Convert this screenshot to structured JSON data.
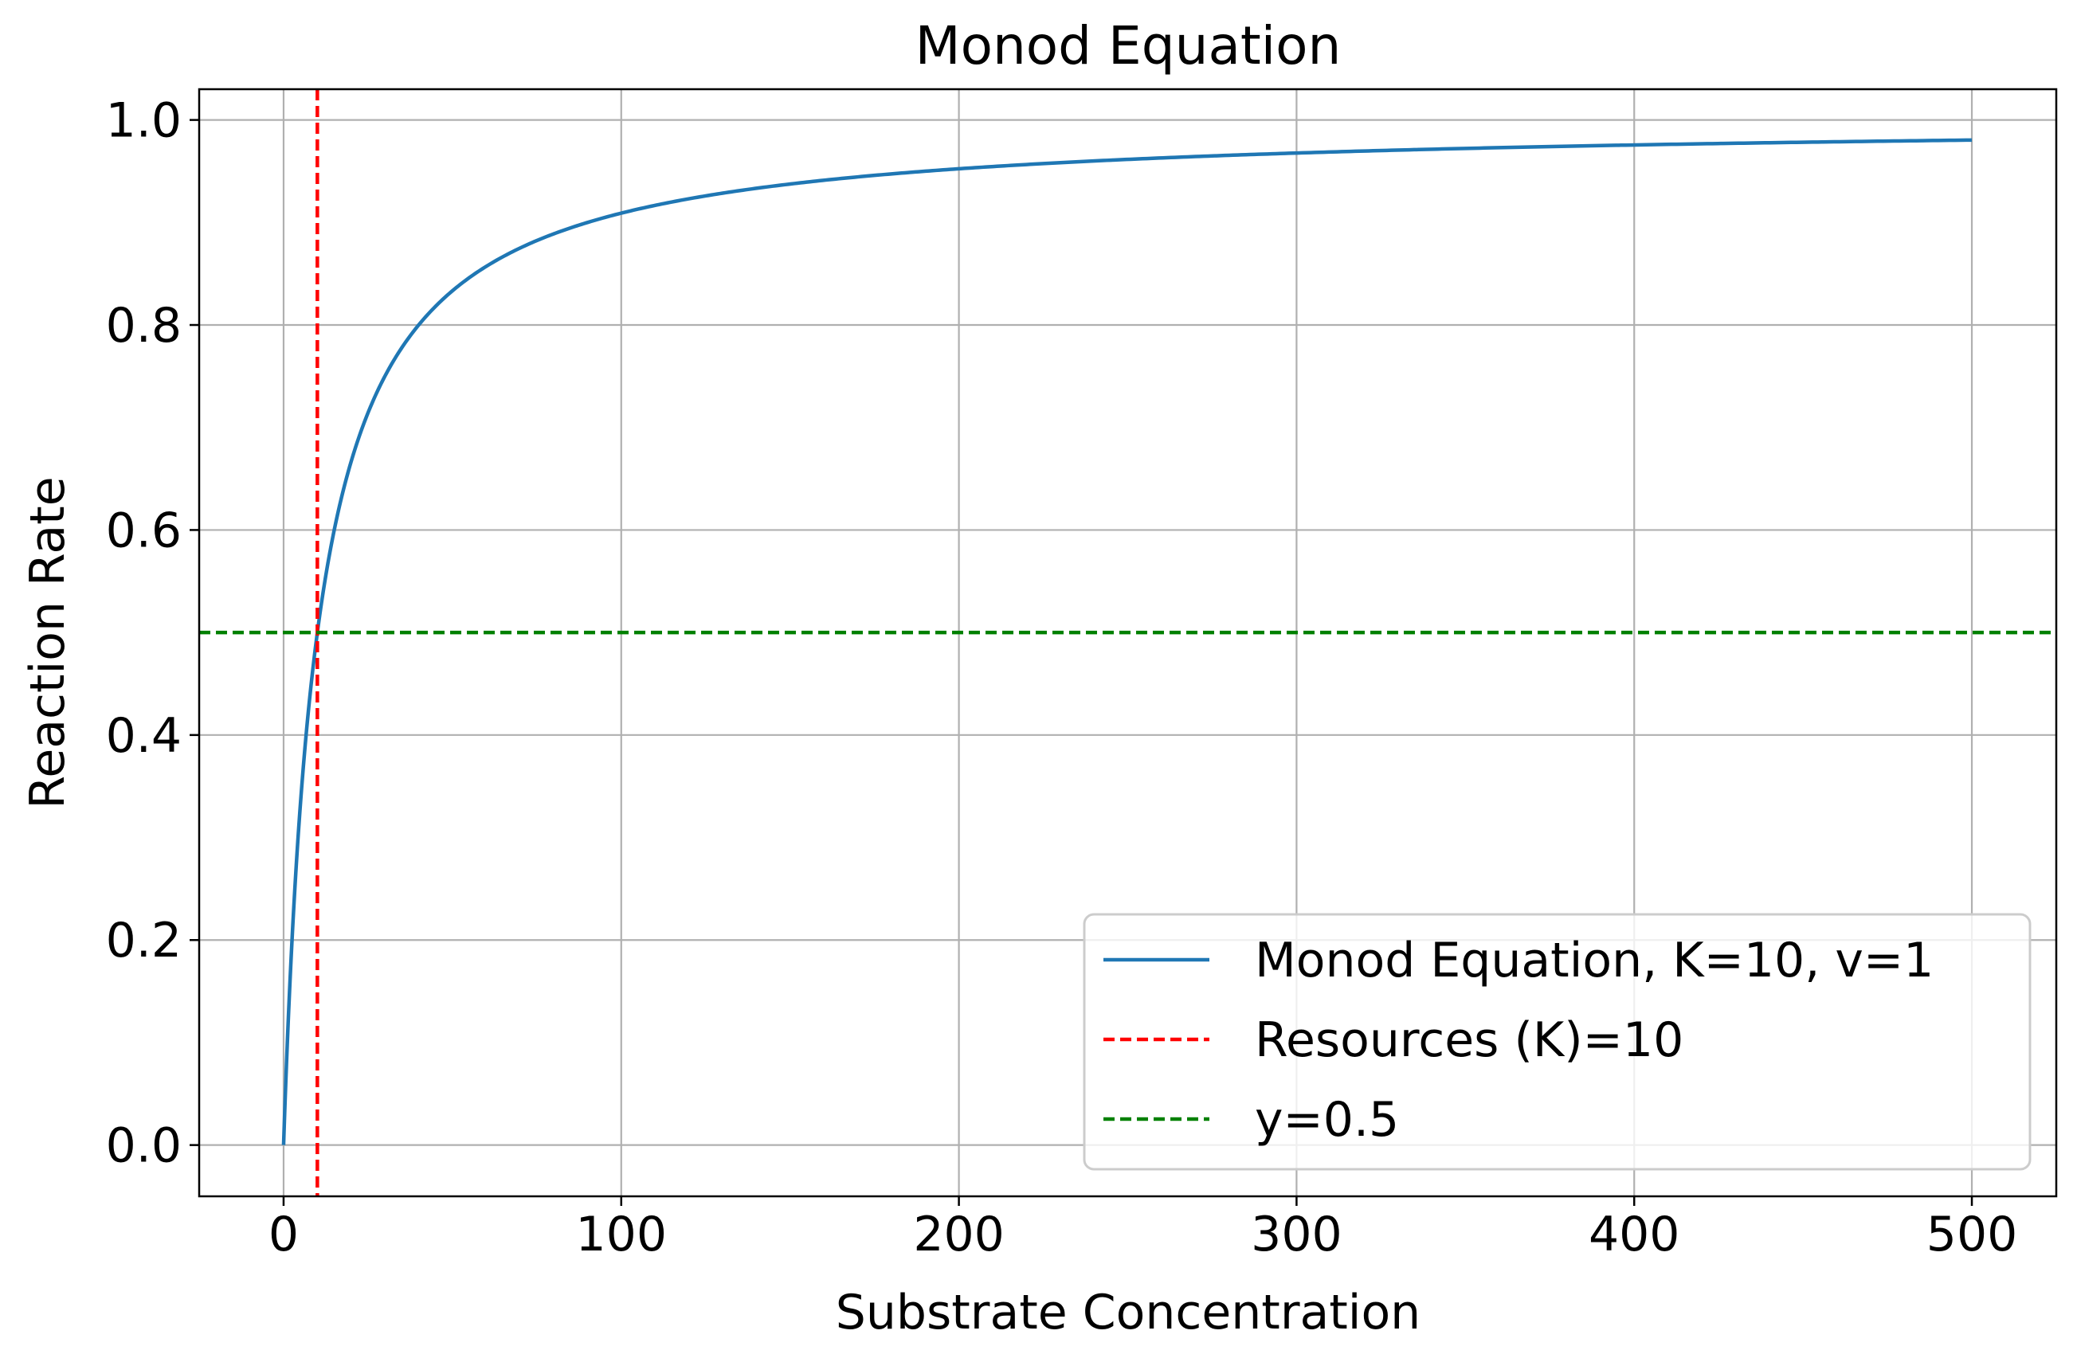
{
  "chart_data": {
    "type": "line",
    "title": "Monod Equation",
    "xlabel": "Substrate Concentration",
    "ylabel": "Reaction Rate",
    "xlim": [
      -25,
      525
    ],
    "ylim": [
      -0.05,
      1.03
    ],
    "x_ticks": [
      0,
      100,
      200,
      300,
      400,
      500
    ],
    "x_tick_labels": [
      "0",
      "100",
      "200",
      "300",
      "400",
      "500"
    ],
    "y_ticks": [
      0.0,
      0.2,
      0.4,
      0.6,
      0.8,
      1.0
    ],
    "y_tick_labels": [
      "0.0",
      "0.2",
      "0.4",
      "0.6",
      "0.8",
      "1.0"
    ],
    "grid": true,
    "legend_position": "lower-right",
    "series": [
      {
        "name": "Monod Equation, K=10, v=1",
        "kind": "curve",
        "color": "#1f77b4",
        "line_style": "solid",
        "x_range": [
          0,
          500
        ],
        "K": 10,
        "v": 1
      },
      {
        "name": "Resources (K)=10",
        "kind": "vline",
        "color": "#ff0000",
        "line_style": "dashed",
        "x": 10
      },
      {
        "name": "y=0.5",
        "kind": "hline",
        "color": "#008000",
        "line_style": "dashed",
        "y": 0.5
      }
    ]
  }
}
